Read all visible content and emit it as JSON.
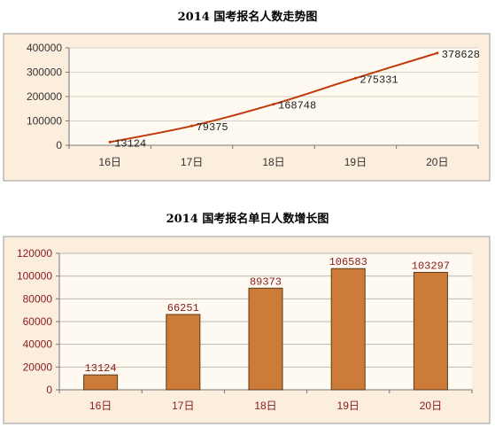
{
  "chart_data": [
    {
      "type": "line",
      "title": "2014 国考报名人数走势图",
      "categories": [
        "16日",
        "17日",
        "18日",
        "19日",
        "20日"
      ],
      "series": [
        {
          "values": [
            13124,
            79375,
            168748,
            275331,
            378628
          ]
        }
      ],
      "yticks": [
        "0",
        "100000",
        "200000",
        "300000",
        "400000"
      ],
      "ylim": [
        0,
        400000
      ],
      "grid": true,
      "colors": {
        "frame_bg": "#FBEEDD",
        "plot_bg": "#FEFAF1",
        "line": "#C0390B",
        "grid": "#D8D0C0"
      }
    },
    {
      "type": "bar",
      "title": "2014 国考报名单日人数增长图",
      "categories": [
        "16日",
        "17日",
        "18日",
        "19日",
        "20日"
      ],
      "series": [
        {
          "values": [
            13124,
            66251,
            89373,
            106583,
            103297
          ]
        }
      ],
      "yticks": [
        "0",
        "20000",
        "40000",
        "60000",
        "80000",
        "100000",
        "120000"
      ],
      "ylim": [
        0,
        120000
      ],
      "grid": true,
      "colors": {
        "frame_bg": "#FBEEDD",
        "plot_bg": "#FEFAF1",
        "bar": "#CD7B38",
        "bar_edge": "#5A3A1A",
        "text": "#8B1A1A",
        "grid": "#BFB8AE"
      }
    }
  ]
}
